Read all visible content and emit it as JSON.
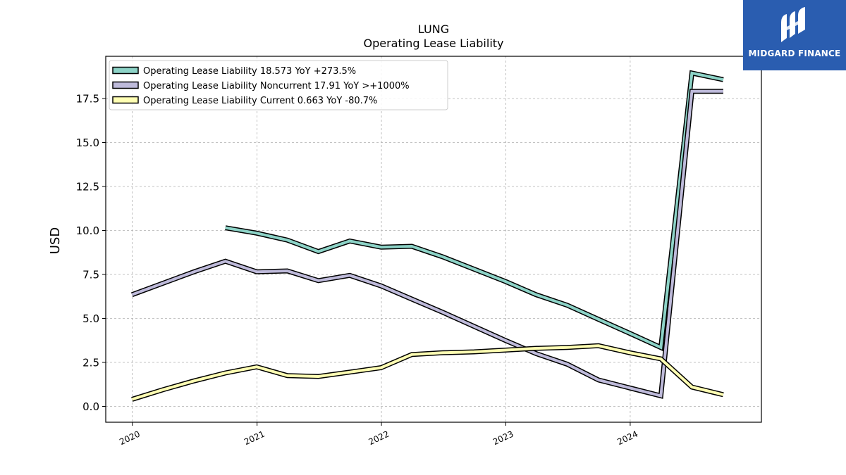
{
  "header": {
    "title": "LUNG",
    "subtitle": "Operating Lease Liability"
  },
  "logo": {
    "text": "MIDGARD FINANCE",
    "color": "#2a5db0"
  },
  "chart_data": {
    "type": "line",
    "title": "LUNG",
    "subtitle": "Operating Lease Liability",
    "xlabel": "",
    "ylabel": "USD",
    "xlim": [
      "2019-10-15",
      "2025-01-20"
    ],
    "ylim": [
      -0.9,
      19.9
    ],
    "x_ticks": [
      "2020",
      "2021",
      "2022",
      "2023",
      "2024"
    ],
    "y_ticks": [
      "0.0",
      "2.5",
      "5.0",
      "7.5",
      "10.0",
      "12.5",
      "15.0",
      "17.5"
    ],
    "grid": true,
    "legend_position": "top-left",
    "series": [
      {
        "name": "Operating Lease Liability",
        "legend_label": "Operating Lease Liability  18.573 YoY +273.5%",
        "color": "#8dd3c7",
        "points": [
          [
            "2020-09-30",
            10.15
          ],
          [
            "2020-12-31",
            9.85
          ],
          [
            "2021-03-31",
            9.45
          ],
          [
            "2021-06-30",
            8.8
          ],
          [
            "2021-09-30",
            9.4
          ],
          [
            "2021-12-31",
            9.05
          ],
          [
            "2022-03-31",
            9.1
          ],
          [
            "2022-06-30",
            8.5
          ],
          [
            "2022-09-30",
            7.8
          ],
          [
            "2022-12-31",
            7.1
          ],
          [
            "2023-03-31",
            6.35
          ],
          [
            "2023-06-30",
            5.75
          ],
          [
            "2023-09-30",
            4.95
          ],
          [
            "2023-12-31",
            4.15
          ],
          [
            "2024-03-31",
            3.35
          ],
          [
            "2024-06-30",
            18.95
          ],
          [
            "2024-09-30",
            18.573
          ]
        ]
      },
      {
        "name": "Operating Lease Liability Noncurrent",
        "legend_label": "Operating Lease Liability Noncurrent  17.91 YoY >+1000%",
        "color": "#bebada",
        "points": [
          [
            "2019-12-31",
            6.35
          ],
          [
            "2020-03-31",
            7.0
          ],
          [
            "2020-06-30",
            7.65
          ],
          [
            "2020-09-30",
            8.25
          ],
          [
            "2020-12-31",
            7.65
          ],
          [
            "2021-03-31",
            7.7
          ],
          [
            "2021-06-30",
            7.15
          ],
          [
            "2021-09-30",
            7.45
          ],
          [
            "2021-12-31",
            6.85
          ],
          [
            "2022-03-31",
            6.1
          ],
          [
            "2022-06-30",
            5.35
          ],
          [
            "2022-09-30",
            4.55
          ],
          [
            "2022-12-31",
            3.75
          ],
          [
            "2023-03-31",
            3.0
          ],
          [
            "2023-06-30",
            2.4
          ],
          [
            "2023-09-30",
            1.5
          ],
          [
            "2023-12-31",
            1.05
          ],
          [
            "2024-03-31",
            0.6
          ],
          [
            "2024-06-30",
            17.91
          ],
          [
            "2024-09-30",
            17.91
          ]
        ]
      },
      {
        "name": "Operating Lease Liability Current",
        "legend_label": "Operating Lease Liability Current  0.663 YoY -80.7%",
        "color": "#ffffb3",
        "points": [
          [
            "2019-12-31",
            0.4
          ],
          [
            "2020-03-31",
            0.95
          ],
          [
            "2020-06-30",
            1.45
          ],
          [
            "2020-09-30",
            1.9
          ],
          [
            "2020-12-31",
            2.25
          ],
          [
            "2021-03-31",
            1.75
          ],
          [
            "2021-06-30",
            1.7
          ],
          [
            "2021-09-30",
            1.95
          ],
          [
            "2021-12-31",
            2.2
          ],
          [
            "2022-03-31",
            2.95
          ],
          [
            "2022-06-30",
            3.05
          ],
          [
            "2022-09-30",
            3.1
          ],
          [
            "2022-12-31",
            3.2
          ],
          [
            "2023-03-31",
            3.3
          ],
          [
            "2023-06-30",
            3.35
          ],
          [
            "2023-09-30",
            3.45
          ],
          [
            "2023-12-31",
            3.05
          ],
          [
            "2024-03-31",
            2.7
          ],
          [
            "2024-06-30",
            1.1
          ],
          [
            "2024-09-30",
            0.663
          ]
        ]
      }
    ]
  }
}
